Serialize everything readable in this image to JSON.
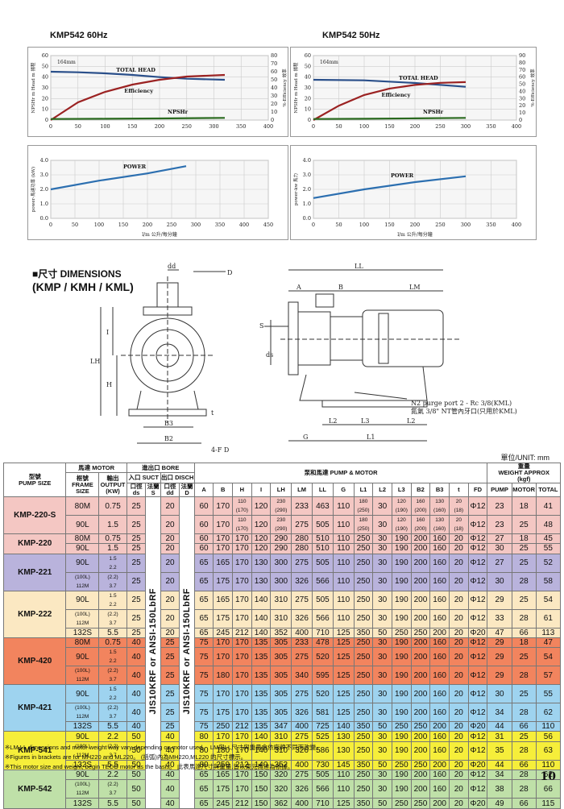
{
  "charts_header": {
    "left_title": "KMP542  60Hz",
    "right_title": "KMP542  50Hz"
  },
  "chart_data": [
    {
      "type": "line",
      "title": "KMP542  60Hz",
      "annotation": "164mm",
      "xlim": [
        0,
        400
      ],
      "x_ticks": [
        "0",
        "50",
        "100",
        "150",
        "200",
        "250",
        "300",
        "350",
        "400"
      ],
      "ylim_left": [
        0,
        60
      ],
      "y_ticks_left": [
        "0",
        "10",
        "20",
        "30",
        "40",
        "50",
        "60"
      ],
      "ylim_right": [
        0,
        80
      ],
      "y_ticks_right": [
        "0",
        "10",
        "20",
        "30",
        "40",
        "50",
        "60",
        "70",
        "80"
      ],
      "ylabel_left": "NPSHr  m  Head m 揚程",
      "ylabel_right": "%-Efficiency 效率",
      "series": [
        {
          "name": "TOTAL HEAD",
          "color": "#2a4f8a",
          "axis": "left",
          "x": [
            0,
            50,
            100,
            150,
            200,
            250,
            320
          ],
          "y": [
            45,
            44.5,
            43.5,
            42,
            40,
            38.5,
            37.5
          ]
        },
        {
          "name": "Efficiency",
          "color": "#9b2222",
          "axis": "right",
          "x": [
            0,
            50,
            100,
            150,
            200,
            250,
            320
          ],
          "y": [
            0,
            22,
            35,
            44,
            50,
            54,
            56
          ]
        },
        {
          "name": "NPSHr",
          "color": "#2a6a1f",
          "axis": "left",
          "x": [
            0,
            100,
            200,
            320
          ],
          "y": [
            1,
            1.2,
            1.5,
            2
          ]
        }
      ]
    },
    {
      "type": "line",
      "title": "KMP542  50Hz",
      "annotation": "164mm",
      "xlim": [
        0,
        400
      ],
      "x_ticks": [
        "0",
        "50",
        "100",
        "150",
        "200",
        "250",
        "300",
        "350",
        "400"
      ],
      "ylim_left": [
        0,
        60
      ],
      "y_ticks_left": [
        "0",
        "10",
        "20",
        "30",
        "40",
        "50",
        "60"
      ],
      "ylim_right": [
        0,
        90
      ],
      "y_ticks_right": [
        "0",
        "10",
        "20",
        "30",
        "40",
        "50",
        "60",
        "70",
        "80",
        "90"
      ],
      "ylabel_left": "NPSHr  m  Head m 揚程",
      "ylabel_right": "%-Efficiency 效率",
      "series": [
        {
          "name": "TOTAL HEAD",
          "color": "#2a4f8a",
          "axis": "left",
          "x": [
            0,
            100,
            200,
            300
          ],
          "y": [
            37.5,
            37,
            34.5,
            31
          ]
        },
        {
          "name": "Efficiency",
          "color": "#9b2222",
          "axis": "right",
          "x": [
            0,
            50,
            100,
            150,
            200,
            250,
            300
          ],
          "y": [
            0,
            20,
            35,
            44,
            49,
            52,
            53
          ]
        },
        {
          "name": "NPSHr",
          "color": "#2a6a1f",
          "axis": "left",
          "x": [
            0,
            100,
            200,
            300
          ],
          "y": [
            1,
            1.2,
            1.6,
            2
          ]
        }
      ]
    },
    {
      "type": "line",
      "xlim": [
        0,
        450
      ],
      "x_ticks": [
        "0",
        "50",
        "100",
        "150",
        "200",
        "250",
        "300",
        "350",
        "400",
        "450"
      ],
      "ylim": [
        0,
        4
      ],
      "y_ticks": [
        "0.0",
        "1.0",
        "2.0",
        "3.0",
        "4.0"
      ],
      "ylabel": "power-馬達功率  (kW)",
      "xlabel": "l/m  公升/每分鐘",
      "series": [
        {
          "name": "POWER",
          "color": "#2c6fb0",
          "x": [
            0,
            100,
            200,
            280
          ],
          "y": [
            2.0,
            2.6,
            3.1,
            3.6
          ]
        }
      ]
    },
    {
      "type": "line",
      "xlim": [
        0,
        400
      ],
      "x_ticks": [
        "0",
        "50",
        "100",
        "150",
        "200",
        "250",
        "300",
        "350",
        "400"
      ],
      "ylim": [
        0,
        4
      ],
      "y_ticks": [
        "0.0",
        "1.0",
        "2.0",
        "3.0",
        "4.0"
      ],
      "ylabel": "power-kw 馬力",
      "xlabel": "l/m  公升/每分鐘",
      "series": [
        {
          "name": "POWER",
          "color": "#2c6fb0",
          "x": [
            0,
            100,
            200,
            300
          ],
          "y": [
            1.4,
            2.0,
            2.5,
            2.9
          ]
        }
      ]
    }
  ],
  "dimensions": {
    "heading": "■尺寸 DIMENSIONS",
    "subheading": "(KMP / KMH / KML)",
    "labels": {
      "dd": "dd",
      "D": "D",
      "LL": "LL",
      "A": "A",
      "B": "B",
      "LM": "LM",
      "S": "S",
      "ds": "ds",
      "I": "I",
      "LH": "LH",
      "H": "H",
      "B3": "B3",
      "B2": "B2",
      "t": "t",
      "4FD": "4-F D",
      "L2a": "L2",
      "L3": "L3",
      "L2b": "L2",
      "L1": "L1",
      "G": "G",
      "purge_en": "N2 purge port 2 - Rc 3/8(KML)",
      "purge_zh": "氮氣 3/8\" NT管內牙口(只用於KML)"
    },
    "unit": "單位/UNIT:  mm"
  },
  "table": {
    "headers": {
      "pump_size": "型號\nPUMP SIZE",
      "motor": "馬達 MOTOR",
      "frame": "框號\nFRAME\nSIZE",
      "output": "輸出\nOUTPUT\n(KW)",
      "bore": "進出口 BORE",
      "suct": "入口 SUCT",
      "disch": "出口 DISCH",
      "suct_bore": "口徑\nds",
      "suct_flange": "法蘭\nS",
      "disch_bore": "口徑\ndd",
      "disch_flange": "法蘭\nD",
      "pump_motor": "泵和馬達 PUMP & MOTOR",
      "cols": [
        "A",
        "B",
        "H",
        "I",
        "LH",
        "LM",
        "LL",
        "G",
        "L1",
        "L2",
        "L3",
        "B2",
        "B3",
        "t",
        "FD"
      ],
      "weight": "重量\nWEIGHT APPROX\n(kgf)",
      "w_pump": "PUMP",
      "w_motor": "MOTOR",
      "w_total": "TOTAL"
    },
    "flange_vertical_s": "JIS10KRF or ANSI-150LbRF",
    "flange_vertical_d": "JIS10KRF or ANSI-150LbRF",
    "groups": [
      {
        "model": "KMP-220-S",
        "color": "#f4c7c3",
        "rows": [
          {
            "frame": "80M",
            "out": "0.75",
            "ds": "25",
            "dd": "20",
            "v": [
              "60",
              "170",
              "110\n(170)",
              "120",
              "230\n(290)",
              "233",
              "463",
              "110",
              "180\n(250)",
              "30",
              "120\n(190)",
              "160\n(200)",
              "130\n(160)",
              "20\n(18)",
              "Φ12",
              "23",
              "18",
              "41"
            ]
          },
          {
            "frame": "90L",
            "out": "1.5",
            "ds": "25",
            "dd": "20",
            "v": [
              "60",
              "170",
              "110\n(170)",
              "120",
              "230\n(290)",
              "275",
              "505",
              "110",
              "180\n(250)",
              "30",
              "120\n(190)",
              "160\n(200)",
              "130\n(160)",
              "20\n(18)",
              "Φ12",
              "23",
              "25",
              "48"
            ]
          }
        ]
      },
      {
        "model": "KMP-220",
        "color": "#f4c7c3",
        "rows": [
          {
            "frame": "80M",
            "out": "0.75",
            "ds": "25",
            "dd": "20",
            "v": [
              "60",
              "170",
              "170",
              "120",
              "290",
              "280",
              "510",
              "110",
              "250",
              "30",
              "190",
              "200",
              "160",
              "20",
              "Φ12",
              "27",
              "18",
              "45"
            ]
          },
          {
            "frame": "90L",
            "out": "1.5",
            "ds": "25",
            "dd": "20",
            "v": [
              "60",
              "170",
              "170",
              "120",
              "290",
              "280",
              "510",
              "110",
              "250",
              "30",
              "190",
              "200",
              "160",
              "20",
              "Φ12",
              "30",
              "25",
              "55"
            ]
          }
        ]
      },
      {
        "model": "KMP-221",
        "color": "#b9b3dc",
        "rows": [
          {
            "frame": "90L",
            "out": "1.5\n2.2",
            "ds": "25",
            "dd": "20",
            "v": [
              "65",
              "165",
              "170",
              "130",
              "300",
              "275",
              "505",
              "110",
              "250",
              "30",
              "190",
              "200",
              "160",
              "20",
              "Φ12",
              "27",
              "25",
              "52"
            ]
          },
          {
            "frame": "(100L)\n112M",
            "out": "(2.2)\n3.7",
            "ds": "25",
            "dd": "20",
            "v": [
              "65",
              "175",
              "170",
              "130",
              "300",
              "326",
              "566",
              "110",
              "250",
              "30",
              "190",
              "200",
              "160",
              "20",
              "Φ12",
              "30",
              "28",
              "58"
            ]
          }
        ]
      },
      {
        "model": "KMP-222",
        "color": "#fbe8c2",
        "rows": [
          {
            "frame": "90L",
            "out": "1.5\n2.2",
            "ds": "25",
            "dd": "20",
            "v": [
              "65",
              "165",
              "170",
              "140",
              "310",
              "275",
              "505",
              "110",
              "250",
              "30",
              "190",
              "200",
              "160",
              "20",
              "Φ12",
              "29",
              "25",
              "54"
            ]
          },
          {
            "frame": "(100L)\n112M",
            "out": "(2.2)\n3.7",
            "ds": "25",
            "dd": "20",
            "v": [
              "65",
              "175",
              "170",
              "140",
              "310",
              "326",
              "566",
              "110",
              "250",
              "30",
              "190",
              "200",
              "160",
              "20",
              "Φ12",
              "33",
              "28",
              "61"
            ]
          },
          {
            "frame": "132S",
            "out": "5.5",
            "ds": "25",
            "dd": "20",
            "v": [
              "65",
              "245",
              "212",
              "140",
              "352",
              "400",
              "710",
              "125",
              "350",
              "50",
              "250",
              "250",
              "200",
              "20",
              "Φ20",
              "47",
              "66",
              "113"
            ]
          }
        ]
      },
      {
        "model": "KMP-420",
        "color": "#f2845e",
        "rows": [
          {
            "frame": "80M",
            "out": "0.75",
            "ds": "40",
            "dd": "25",
            "v": [
              "75",
              "170",
              "170",
              "135",
              "305",
              "233",
              "478",
              "125",
              "250",
              "30",
              "190",
              "200",
              "160",
              "20",
              "Φ12",
              "29",
              "18",
              "47"
            ]
          },
          {
            "frame": "90L",
            "out": "1.5\n2.2",
            "ds": "40",
            "dd": "25",
            "v": [
              "75",
              "170",
              "170",
              "135",
              "305",
              "275",
              "520",
              "125",
              "250",
              "30",
              "190",
              "200",
              "160",
              "20",
              "Φ12",
              "29",
              "25",
              "54"
            ]
          },
          {
            "frame": "(100L)\n112M",
            "out": "(2.2)\n3.7",
            "ds": "40",
            "dd": "25",
            "v": [
              "75",
              "180",
              "170",
              "135",
              "305",
              "340",
              "595",
              "125",
              "250",
              "30",
              "190",
              "200",
              "160",
              "20",
              "Φ12",
              "29",
              "28",
              "57"
            ]
          }
        ]
      },
      {
        "model": "KMP-421",
        "color": "#9ed3ef",
        "rows": [
          {
            "frame": "90L",
            "out": "1.5\n2.2",
            "ds": "40",
            "dd": "25",
            "v": [
              "75",
              "170",
              "170",
              "135",
              "305",
              "275",
              "520",
              "125",
              "250",
              "30",
              "190",
              "200",
              "160",
              "20",
              "Φ12",
              "30",
              "25",
              "55"
            ]
          },
          {
            "frame": "(100L)\n112M",
            "out": "(2.2)\n3.7",
            "ds": "40",
            "dd": "25",
            "v": [
              "75",
              "175",
              "170",
              "135",
              "305",
              "326",
              "581",
              "125",
              "250",
              "30",
              "190",
              "200",
              "160",
              "20",
              "Φ12",
              "34",
              "28",
              "62"
            ]
          },
          {
            "frame": "132S",
            "out": "5.5",
            "ds": "40",
            "dd": "25",
            "v": [
              "75",
              "250",
              "212",
              "135",
              "347",
              "400",
              "725",
              "140",
              "350",
              "50",
              "250",
              "250",
              "200",
              "20",
              "Φ20",
              "44",
              "66",
              "110"
            ]
          }
        ]
      },
      {
        "model": "KMP-541",
        "color": "#f6ee3a",
        "rows": [
          {
            "frame": "90L",
            "out": "2.2",
            "ds": "50",
            "dd": "40",
            "v": [
              "80",
              "170",
              "170",
              "140",
              "310",
              "275",
              "525",
              "130",
              "250",
              "30",
              "190",
              "200",
              "160",
              "20",
              "Φ12",
              "31",
              "25",
              "56"
            ]
          },
          {
            "frame": "(100L)\n112M",
            "out": "(2.2)\n3.7",
            "ds": "50",
            "dd": "40",
            "v": [
              "80",
              "180",
              "170",
              "140",
              "310",
              "326",
              "586",
              "130",
              "250",
              "30",
              "190",
              "200",
              "160",
              "20",
              "Φ12",
              "35",
              "28",
              "63"
            ]
          },
          {
            "frame": "132S",
            "out": "5.5",
            "ds": "50",
            "dd": "40",
            "v": [
              "80",
              "250",
              "212",
              "140",
              "352",
              "400",
              "730",
              "145",
              "350",
              "50",
              "250",
              "250",
              "200",
              "20",
              "Φ20",
              "44",
              "66",
              "110"
            ]
          }
        ]
      },
      {
        "model": "KMP-542",
        "color": "#bfe0a8",
        "rows": [
          {
            "frame": "90L",
            "out": "2.2",
            "ds": "50",
            "dd": "40",
            "v": [
              "65",
              "165",
              "170",
              "150",
              "320",
              "275",
              "505",
              "110",
              "250",
              "30",
              "190",
              "200",
              "160",
              "20",
              "Φ12",
              "34",
              "28",
              "62"
            ]
          },
          {
            "frame": "(100L)\n112M",
            "out": "(2.2)\n3.7",
            "ds": "50",
            "dd": "40",
            "v": [
              "65",
              "175",
              "170",
              "150",
              "320",
              "326",
              "566",
              "110",
              "250",
              "30",
              "190",
              "200",
              "160",
              "20",
              "Φ12",
              "38",
              "28",
              "66"
            ]
          },
          {
            "frame": "132S",
            "out": "5.5",
            "ds": "50",
            "dd": "40",
            "v": [
              "65",
              "245",
              "212",
              "150",
              "362",
              "400",
              "710",
              "125",
              "350",
              "50",
              "250",
              "250",
              "200",
              "20",
              "Φ20",
              "49",
              "66",
              "115"
            ]
          }
        ]
      }
    ]
  },
  "notes": [
    "※LM,LL dimensions and motor weight way vary depending on motor used。 LM與LL尺寸與重量會依廠牌不同而改變。",
    "※Figures in brackets are for MH220 and ML220。 (括弧)內為MH220,ML220 的尺寸標示。",
    "※This motor size and weight, begin TECO motor as the basis。 此表馬達尺寸與重量,皆以東元馬達為依據。"
  ],
  "page_number": "10"
}
